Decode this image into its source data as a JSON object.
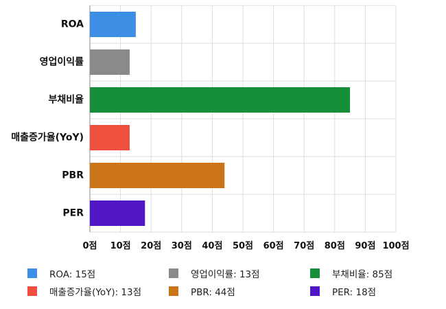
{
  "chart_data": {
    "type": "bar",
    "orientation": "horizontal",
    "categories": [
      "ROA",
      "영업이익률",
      "부채비율",
      "매출증가율(YoY)",
      "PBR",
      "PER"
    ],
    "values": [
      15,
      13,
      85,
      13,
      44,
      18
    ],
    "colors": [
      "#3d8fe6",
      "#8a8a8a",
      "#178f3a",
      "#ee4f3e",
      "#cc7418",
      "#5016c4"
    ],
    "xlim": [
      0,
      100
    ],
    "x_ticks": [
      0,
      10,
      20,
      30,
      40,
      50,
      60,
      70,
      80,
      90,
      100
    ],
    "tick_suffix": "점",
    "grid": true,
    "legend_position": "bottom",
    "legend": [
      {
        "label": "ROA: 15점",
        "color": "#3d8fe6"
      },
      {
        "label": "영업이익률: 13점",
        "color": "#8a8a8a"
      },
      {
        "label": "부채비율: 85점",
        "color": "#178f3a"
      },
      {
        "label": "매출증가율(YoY): 13점",
        "color": "#ee4f3e"
      },
      {
        "label": "PBR: 44점",
        "color": "#cc7418"
      },
      {
        "label": "PER: 18점",
        "color": "#5016c4"
      }
    ]
  }
}
